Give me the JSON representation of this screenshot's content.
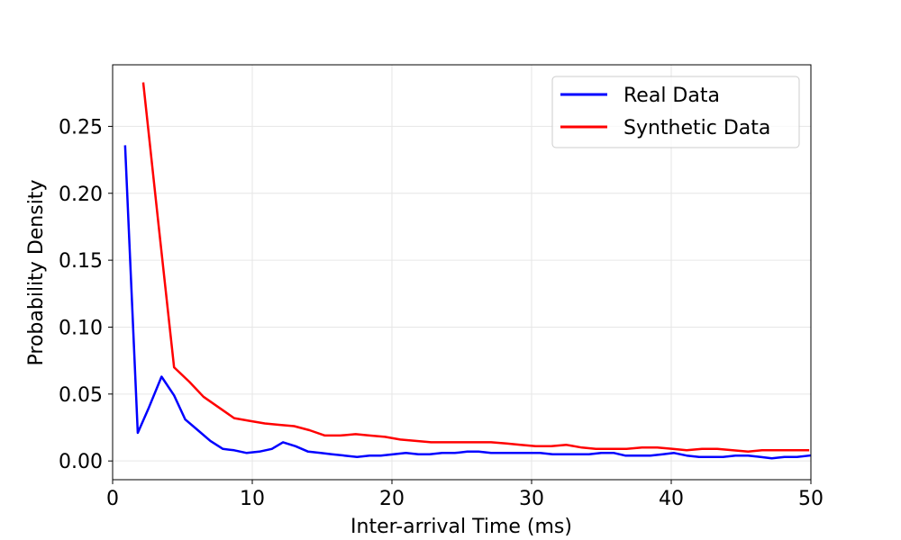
{
  "chart_data": {
    "type": "line",
    "title": "",
    "xlabel": "Inter-arrival Time (ms)",
    "ylabel": "Probability Density",
    "xlim": [
      0,
      50
    ],
    "ylim": [
      -0.014,
      0.296
    ],
    "xticks": [
      0,
      10,
      20,
      30,
      40,
      50
    ],
    "xtick_labels": [
      "0",
      "10",
      "20",
      "30",
      "40",
      "50"
    ],
    "yticks": [
      0.0,
      0.05,
      0.1,
      0.15,
      0.2,
      0.25
    ],
    "ytick_labels": [
      "0.00",
      "0.05",
      "0.10",
      "0.15",
      "0.20",
      "0.25"
    ],
    "grid": true,
    "legend_position": "top-right",
    "series": [
      {
        "name": "Real Data",
        "color": "#0000ff",
        "x": [
          0.9,
          1.8,
          2.6,
          3.5,
          4.4,
          5.2,
          6.1,
          7.0,
          7.9,
          8.7,
          9.6,
          10.5,
          11.4,
          12.2,
          13.1,
          14.0,
          14.9,
          15.7,
          16.6,
          17.5,
          18.4,
          19.2,
          20.1,
          21.0,
          21.9,
          22.7,
          23.6,
          24.5,
          25.4,
          26.2,
          27.1,
          28.0,
          28.9,
          29.7,
          30.6,
          31.5,
          32.4,
          33.2,
          34.1,
          35.0,
          35.9,
          36.7,
          37.6,
          38.5,
          39.4,
          40.2,
          41.1,
          42.0,
          42.9,
          43.7,
          44.6,
          45.5,
          46.4,
          47.2,
          48.1,
          49.0,
          49.9
        ],
        "y": [
          0.235,
          0.021,
          0.04,
          0.063,
          0.049,
          0.031,
          0.023,
          0.015,
          0.009,
          0.008,
          0.006,
          0.007,
          0.009,
          0.014,
          0.011,
          0.007,
          0.006,
          0.005,
          0.004,
          0.003,
          0.004,
          0.004,
          0.005,
          0.006,
          0.005,
          0.005,
          0.006,
          0.006,
          0.007,
          0.007,
          0.006,
          0.006,
          0.006,
          0.006,
          0.006,
          0.005,
          0.005,
          0.005,
          0.005,
          0.006,
          0.006,
          0.004,
          0.004,
          0.004,
          0.005,
          0.006,
          0.004,
          0.003,
          0.003,
          0.003,
          0.004,
          0.004,
          0.003,
          0.002,
          0.003,
          0.003,
          0.004
        ]
      },
      {
        "name": "Synthetic Data",
        "color": "#ff0000",
        "x": [
          2.2,
          3.3,
          4.4,
          5.5,
          6.5,
          7.6,
          8.7,
          9.8,
          10.9,
          11.9,
          13.0,
          14.1,
          15.2,
          16.3,
          17.4,
          18.4,
          19.5,
          20.6,
          21.7,
          22.8,
          23.8,
          24.9,
          26.0,
          27.1,
          28.2,
          29.2,
          30.3,
          31.4,
          32.5,
          33.6,
          34.6,
          35.7,
          36.8,
          37.9,
          39.0,
          40.1,
          41.1,
          42.2,
          43.3,
          44.4,
          45.5,
          46.5,
          47.6,
          48.7,
          49.8
        ],
        "y": [
          0.282,
          0.175,
          0.07,
          0.059,
          0.048,
          0.04,
          0.032,
          0.03,
          0.028,
          0.027,
          0.026,
          0.023,
          0.019,
          0.019,
          0.02,
          0.019,
          0.018,
          0.016,
          0.015,
          0.014,
          0.014,
          0.014,
          0.014,
          0.014,
          0.013,
          0.012,
          0.011,
          0.011,
          0.012,
          0.01,
          0.009,
          0.009,
          0.009,
          0.01,
          0.01,
          0.009,
          0.008,
          0.009,
          0.009,
          0.008,
          0.007,
          0.008,
          0.008,
          0.008,
          0.008
        ]
      }
    ]
  }
}
